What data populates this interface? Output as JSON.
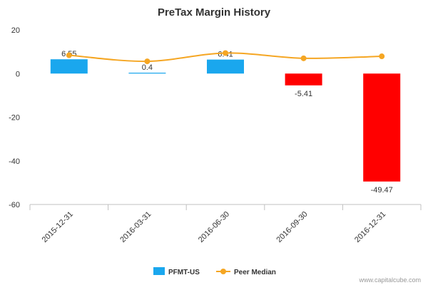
{
  "chart_data": {
    "type": "bar",
    "title": "PreTax Margin History",
    "categories": [
      "2015-12-31",
      "2016-03-31",
      "2016-06-30",
      "2016-09-30",
      "2016-12-31"
    ],
    "series": [
      {
        "name": "PFMT-US",
        "type": "bar",
        "values": [
          6.55,
          0.4,
          6.41,
          -5.41,
          -49.47
        ],
        "data_labels": [
          "6.55",
          "0.4",
          "6.41",
          "-5.41",
          "-49.47"
        ],
        "positive_color": "#1aa7ee",
        "negative_color": "#ff0000"
      },
      {
        "name": "Peer Median",
        "type": "line",
        "values": [
          8.4,
          5.6,
          9.4,
          7.0,
          7.9
        ],
        "color": "#f5a623"
      }
    ],
    "ylim": [
      -60,
      20
    ],
    "yticks": [
      20,
      0,
      -20,
      -40,
      -60
    ],
    "ytick_labels": [
      "20",
      "0",
      "-20",
      "-40",
      "-60"
    ],
    "grid": false,
    "legend_position": "bottom-center"
  },
  "watermark": "www.capitalcube.com",
  "colors": {
    "axis": "#c0c0c0",
    "text": "#333333"
  }
}
